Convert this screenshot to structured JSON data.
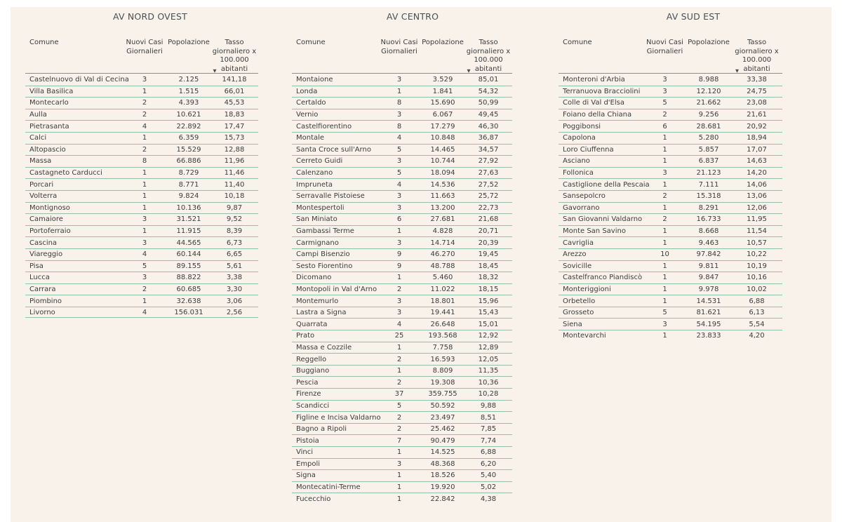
{
  "colors": {
    "page_margin": "#ffffff",
    "canvas_background": "#f8f2ea",
    "row_divider_green": "#96bfa8",
    "header_divider_gray": "#8f8c86",
    "body_text": "#3c3c3c",
    "title_text": "#4a5054"
  },
  "column_headers": {
    "comune": [
      "Comune"
    ],
    "nuovi_casi": [
      "Nuovi Casi",
      "Giornalieri"
    ],
    "popolazione": [
      "Popolazione"
    ],
    "tasso": [
      "Tasso",
      "giornaliero x",
      "100.000",
      "abitanti"
    ]
  },
  "sort_indicator": "▼",
  "chart_data": [
    {
      "type": "table",
      "title": "AV NORD OVEST",
      "columns": [
        "Comune",
        "Nuovi Casi Giornalieri",
        "Popolazione",
        "Tasso giornaliero x 100.000 abitanti"
      ],
      "sorted_by": "Tasso giornaliero x 100.000 abitanti (descending)",
      "rows": [
        [
          "Castelnuovo di Val di Cecina",
          "3",
          "2.125",
          "141,18"
        ],
        [
          "Villa Basilica",
          "1",
          "1.515",
          "66,01"
        ],
        [
          "Montecarlo",
          "2",
          "4.393",
          "45,53"
        ],
        [
          "Aulla",
          "2",
          "10.621",
          "18,83"
        ],
        [
          "Pietrasanta",
          "4",
          "22.892",
          "17,47"
        ],
        [
          "Calci",
          "1",
          "6.359",
          "15,73"
        ],
        [
          "Altopascio",
          "2",
          "15.529",
          "12,88"
        ],
        [
          "Massa",
          "8",
          "66.886",
          "11,96"
        ],
        [
          "Castagneto Carducci",
          "1",
          "8.729",
          "11,46"
        ],
        [
          "Porcari",
          "1",
          "8.771",
          "11,40"
        ],
        [
          "Volterra",
          "1",
          "9.824",
          "10,18"
        ],
        [
          "Montignoso",
          "1",
          "10.136",
          "9,87"
        ],
        [
          "Camaiore",
          "3",
          "31.521",
          "9,52"
        ],
        [
          "Portoferraio",
          "1",
          "11.915",
          "8,39"
        ],
        [
          "Cascina",
          "3",
          "44.565",
          "6,73"
        ],
        [
          "Viareggio",
          "4",
          "60.144",
          "6,65"
        ],
        [
          "Pisa",
          "5",
          "89.155",
          "5,61"
        ],
        [
          "Lucca",
          "3",
          "88.822",
          "3,38"
        ],
        [
          "Carrara",
          "2",
          "60.685",
          "3,30"
        ],
        [
          "Piombino",
          "1",
          "32.638",
          "3,06"
        ],
        [
          "Livorno",
          "4",
          "156.031",
          "2,56"
        ]
      ]
    },
    {
      "type": "table",
      "title": "AV CENTRO",
      "columns": [
        "Comune",
        "Nuovi Casi Giornalieri",
        "Popolazione",
        "Tasso giornaliero x 100.000 abitanti"
      ],
      "sorted_by": "Tasso giornaliero x 100.000 abitanti (descending)",
      "rows": [
        [
          "Montaione",
          "3",
          "3.529",
          "85,01"
        ],
        [
          "Londa",
          "1",
          "1.841",
          "54,32"
        ],
        [
          "Certaldo",
          "8",
          "15.690",
          "50,99"
        ],
        [
          "Vernio",
          "3",
          "6.067",
          "49,45"
        ],
        [
          "Castelfiorentino",
          "8",
          "17.279",
          "46,30"
        ],
        [
          "Montale",
          "4",
          "10.848",
          "36,87"
        ],
        [
          "Santa Croce sull'Arno",
          "5",
          "14.465",
          "34,57"
        ],
        [
          "Cerreto Guidi",
          "3",
          "10.744",
          "27,92"
        ],
        [
          "Calenzano",
          "5",
          "18.094",
          "27,63"
        ],
        [
          "Impruneta",
          "4",
          "14.536",
          "27,52"
        ],
        [
          "Serravalle Pistoiese",
          "3",
          "11.663",
          "25,72"
        ],
        [
          "Montespertoli",
          "3",
          "13.200",
          "22,73"
        ],
        [
          "San Miniato",
          "6",
          "27.681",
          "21,68"
        ],
        [
          "Gambassi Terme",
          "1",
          "4.828",
          "20,71"
        ],
        [
          "Carmignano",
          "3",
          "14.714",
          "20,39"
        ],
        [
          "Campi Bisenzio",
          "9",
          "46.270",
          "19,45"
        ],
        [
          "Sesto Fiorentino",
          "9",
          "48.788",
          "18,45"
        ],
        [
          "Dicomano",
          "1",
          "5.460",
          "18,32"
        ],
        [
          "Montopoli in Val d'Arno",
          "2",
          "11.022",
          "18,15"
        ],
        [
          "Montemurlo",
          "3",
          "18.801",
          "15,96"
        ],
        [
          "Lastra a Signa",
          "3",
          "19.441",
          "15,43"
        ],
        [
          "Quarrata",
          "4",
          "26.648",
          "15,01"
        ],
        [
          "Prato",
          "25",
          "193.568",
          "12,92"
        ],
        [
          "Massa e Cozzile",
          "1",
          "7.758",
          "12,89"
        ],
        [
          "Reggello",
          "2",
          "16.593",
          "12,05"
        ],
        [
          "Buggiano",
          "1",
          "8.809",
          "11,35"
        ],
        [
          "Pescia",
          "2",
          "19.308",
          "10,36"
        ],
        [
          "Firenze",
          "37",
          "359.755",
          "10,28"
        ],
        [
          "Scandicci",
          "5",
          "50.592",
          "9,88"
        ],
        [
          "Figline e Incisa Valdarno",
          "2",
          "23.497",
          "8,51"
        ],
        [
          "Bagno a Ripoli",
          "2",
          "25.462",
          "7,85"
        ],
        [
          "Pistoia",
          "7",
          "90.479",
          "7,74"
        ],
        [
          "Vinci",
          "1",
          "14.525",
          "6,88"
        ],
        [
          "Empoli",
          "3",
          "48.368",
          "6,20"
        ],
        [
          "Signa",
          "1",
          "18.526",
          "5,40"
        ],
        [
          "Montecatini-Terme",
          "1",
          "19.920",
          "5,02"
        ],
        [
          "Fucecchio",
          "1",
          "22.842",
          "4,38"
        ]
      ]
    },
    {
      "type": "table",
      "title": "AV SUD EST",
      "columns": [
        "Comune",
        "Nuovi Casi Giornalieri",
        "Popolazione",
        "Tasso giornaliero x 100.000 abitanti"
      ],
      "sorted_by": "Tasso giornaliero x 100.000 abitanti (descending)",
      "rows": [
        [
          "Monteroni d'Arbia",
          "3",
          "8.988",
          "33,38"
        ],
        [
          "Terranuova Bracciolini",
          "3",
          "12.120",
          "24,75"
        ],
        [
          "Colle di Val d'Elsa",
          "5",
          "21.662",
          "23,08"
        ],
        [
          "Foiano della Chiana",
          "2",
          "9.256",
          "21,61"
        ],
        [
          "Poggibonsi",
          "6",
          "28.681",
          "20,92"
        ],
        [
          "Capolona",
          "1",
          "5.280",
          "18,94"
        ],
        [
          "Loro Ciuffenna",
          "1",
          "5.857",
          "17,07"
        ],
        [
          "Asciano",
          "1",
          "6.837",
          "14,63"
        ],
        [
          "Follonica",
          "3",
          "21.123",
          "14,20"
        ],
        [
          "Castiglione della Pescaia",
          "1",
          "7.111",
          "14,06"
        ],
        [
          "Sansepolcro",
          "2",
          "15.318",
          "13,06"
        ],
        [
          "Gavorrano",
          "1",
          "8.291",
          "12,06"
        ],
        [
          "San Giovanni Valdarno",
          "2",
          "16.733",
          "11,95"
        ],
        [
          "Monte San Savino",
          "1",
          "8.668",
          "11,54"
        ],
        [
          "Cavriglia",
          "1",
          "9.463",
          "10,57"
        ],
        [
          "Arezzo",
          "10",
          "97.842",
          "10,22"
        ],
        [
          "Sovicille",
          "1",
          "9.811",
          "10,19"
        ],
        [
          "Castelfranco Piandiscò",
          "1",
          "9.847",
          "10,16"
        ],
        [
          "Monteriggioni",
          "1",
          "9.978",
          "10,02"
        ],
        [
          "Orbetello",
          "1",
          "14.531",
          "6,88"
        ],
        [
          "Grosseto",
          "5",
          "81.621",
          "6,13"
        ],
        [
          "Siena",
          "3",
          "54.195",
          "5,54"
        ],
        [
          "Montevarchi",
          "1",
          "23.833",
          "4,20"
        ]
      ]
    }
  ]
}
